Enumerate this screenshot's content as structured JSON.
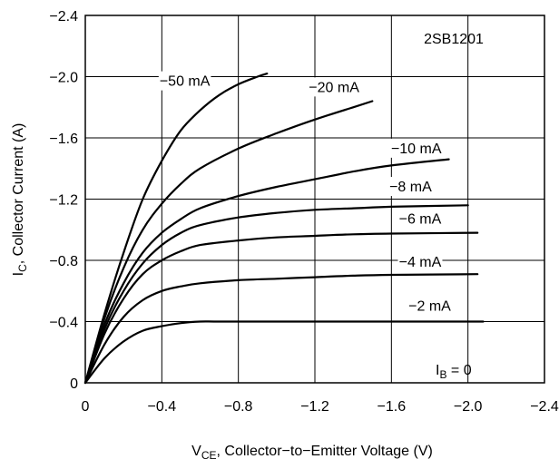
{
  "chart_data": {
    "type": "line",
    "part_number": "2SB1201",
    "xlabel": {
      "main": "V",
      "sub": "CE",
      "rest": ", Collector−to−Emitter Voltage (V)"
    },
    "ylabel": {
      "main": "I",
      "sub": "C",
      "rest": ", Collector Current (A)"
    },
    "xlim": [
      0,
      -2.4
    ],
    "ylim": [
      0,
      -2.4
    ],
    "x_ticks": [
      0,
      -0.4,
      -0.8,
      -1.2,
      -1.6,
      -2.0,
      -2.4
    ],
    "y_ticks": [
      0,
      -0.4,
      -0.8,
      -1.2,
      -1.6,
      -2.0,
      -2.4
    ],
    "x_tick_labels": [
      "0",
      "−0.4",
      "−0.8",
      "−1.2",
      "−1.6",
      "−2.0",
      "−2.4"
    ],
    "y_tick_labels": [
      "0",
      "−0.4",
      "−0.8",
      "−1.2",
      "−1.6",
      "−2.0",
      "−2.4"
    ],
    "grid": true,
    "series": [
      {
        "name": "−50 mA",
        "label_pos": [
          -0.52,
          -1.94
        ],
        "points": [
          [
            0,
            0
          ],
          [
            -0.1,
            -0.45
          ],
          [
            -0.2,
            -0.85
          ],
          [
            -0.3,
            -1.2
          ],
          [
            -0.4,
            -1.45
          ],
          [
            -0.5,
            -1.65
          ],
          [
            -0.6,
            -1.78
          ],
          [
            -0.7,
            -1.88
          ],
          [
            -0.8,
            -1.95
          ],
          [
            -0.9,
            -2.0
          ],
          [
            -0.95,
            -2.02
          ]
        ]
      },
      {
        "name": "−20 mA",
        "label_pos": [
          -1.3,
          -1.9
        ],
        "points": [
          [
            0,
            0
          ],
          [
            -0.1,
            -0.42
          ],
          [
            -0.2,
            -0.75
          ],
          [
            -0.3,
            -1.0
          ],
          [
            -0.4,
            -1.17
          ],
          [
            -0.5,
            -1.3
          ],
          [
            -0.6,
            -1.4
          ],
          [
            -0.8,
            -1.53
          ],
          [
            -1.0,
            -1.63
          ],
          [
            -1.2,
            -1.72
          ],
          [
            -1.4,
            -1.8
          ],
          [
            -1.5,
            -1.84
          ]
        ]
      },
      {
        "name": "−10 mA",
        "label_pos": [
          -1.73,
          -1.5
        ],
        "points": [
          [
            0,
            0
          ],
          [
            -0.1,
            -0.38
          ],
          [
            -0.2,
            -0.65
          ],
          [
            -0.3,
            -0.85
          ],
          [
            -0.4,
            -0.98
          ],
          [
            -0.5,
            -1.07
          ],
          [
            -0.6,
            -1.14
          ],
          [
            -0.8,
            -1.22
          ],
          [
            -1.0,
            -1.28
          ],
          [
            -1.2,
            -1.33
          ],
          [
            -1.4,
            -1.38
          ],
          [
            -1.6,
            -1.42
          ],
          [
            -1.9,
            -1.46
          ]
        ]
      },
      {
        "name": "−8 mA",
        "label_pos": [
          -1.7,
          -1.25
        ],
        "points": [
          [
            0,
            0
          ],
          [
            -0.1,
            -0.35
          ],
          [
            -0.2,
            -0.6
          ],
          [
            -0.3,
            -0.78
          ],
          [
            -0.4,
            -0.9
          ],
          [
            -0.5,
            -0.98
          ],
          [
            -0.6,
            -1.03
          ],
          [
            -0.8,
            -1.08
          ],
          [
            -1.0,
            -1.11
          ],
          [
            -1.2,
            -1.13
          ],
          [
            -1.4,
            -1.14
          ],
          [
            -1.6,
            -1.15
          ],
          [
            -2.0,
            -1.16
          ]
        ]
      },
      {
        "name": "−6 mA",
        "label_pos": [
          -1.75,
          -1.04
        ],
        "points": [
          [
            0,
            0
          ],
          [
            -0.1,
            -0.32
          ],
          [
            -0.2,
            -0.55
          ],
          [
            -0.3,
            -0.71
          ],
          [
            -0.4,
            -0.8
          ],
          [
            -0.5,
            -0.86
          ],
          [
            -0.6,
            -0.9
          ],
          [
            -0.8,
            -0.93
          ],
          [
            -1.0,
            -0.95
          ],
          [
            -1.2,
            -0.96
          ],
          [
            -1.4,
            -0.97
          ],
          [
            -1.6,
            -0.975
          ],
          [
            -2.05,
            -0.98
          ]
        ]
      },
      {
        "name": "−4 mA",
        "label_pos": [
          -1.75,
          -0.76
        ],
        "points": [
          [
            0,
            0
          ],
          [
            -0.1,
            -0.25
          ],
          [
            -0.2,
            -0.43
          ],
          [
            -0.3,
            -0.54
          ],
          [
            -0.4,
            -0.6
          ],
          [
            -0.5,
            -0.63
          ],
          [
            -0.6,
            -0.65
          ],
          [
            -0.8,
            -0.67
          ],
          [
            -1.0,
            -0.68
          ],
          [
            -1.2,
            -0.69
          ],
          [
            -1.4,
            -0.7
          ],
          [
            -1.6,
            -0.705
          ],
          [
            -2.05,
            -0.71
          ]
        ]
      },
      {
        "name": "−2 mA",
        "label_pos": [
          -1.8,
          -0.47
        ],
        "points": [
          [
            0,
            0
          ],
          [
            -0.1,
            -0.16
          ],
          [
            -0.2,
            -0.27
          ],
          [
            -0.3,
            -0.34
          ],
          [
            -0.4,
            -0.37
          ],
          [
            -0.5,
            -0.39
          ],
          [
            -0.6,
            -0.4
          ],
          [
            -0.7,
            -0.4
          ],
          [
            -1.0,
            -0.4
          ],
          [
            -1.4,
            -0.4
          ],
          [
            -1.8,
            -0.4
          ],
          [
            -2.08,
            -0.4
          ]
        ]
      }
    ],
    "annotation": {
      "main": "I",
      "sub": "B",
      "rest": " = 0"
    }
  }
}
